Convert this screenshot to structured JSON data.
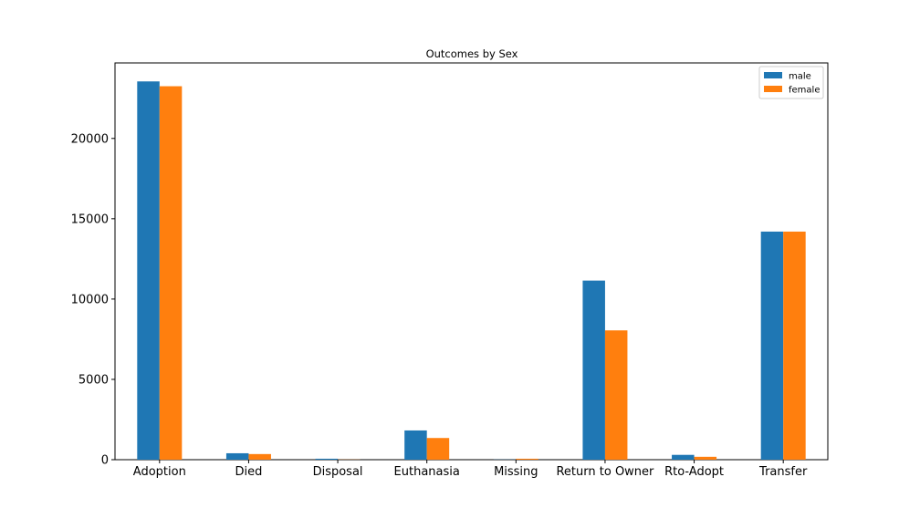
{
  "chart_data": {
    "type": "bar",
    "title": "Outcomes by Sex",
    "xlabel": "",
    "ylabel": "",
    "categories": [
      "Adoption",
      "Died",
      "Disposal",
      "Euthanasia",
      "Missing",
      "Return to Owner",
      "Rto-Adopt",
      "Transfer"
    ],
    "series": [
      {
        "name": "male",
        "color": "#1f77b4",
        "values": [
          23550,
          400,
          60,
          1820,
          10,
          11150,
          300,
          14200
        ]
      },
      {
        "name": "female",
        "color": "#ff7f0e",
        "values": [
          23250,
          350,
          10,
          1350,
          60,
          8050,
          180,
          14200
        ]
      }
    ],
    "ylim": [
      0,
      24700
    ],
    "yticks": [
      0,
      5000,
      10000,
      15000,
      20000
    ],
    "grid": false,
    "legend_position": "top-right"
  }
}
